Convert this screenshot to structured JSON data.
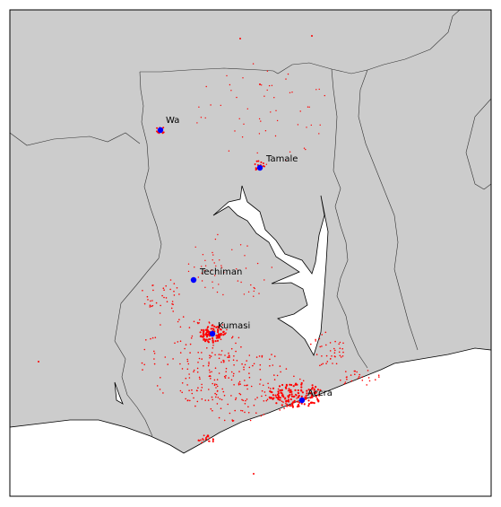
{
  "map": {
    "colors": {
      "land": "#cccccc",
      "water": "#ffffff",
      "border": "#000000",
      "internal_border": "#333333",
      "settlement_points": "#ff0000",
      "city_markers": "#0000ff"
    },
    "cities": [
      {
        "name": "Wa"
      },
      {
        "name": "Tamale"
      },
      {
        "name": "Techiman"
      },
      {
        "name": "Kumasi"
      },
      {
        "name": "Accra"
      }
    ]
  }
}
